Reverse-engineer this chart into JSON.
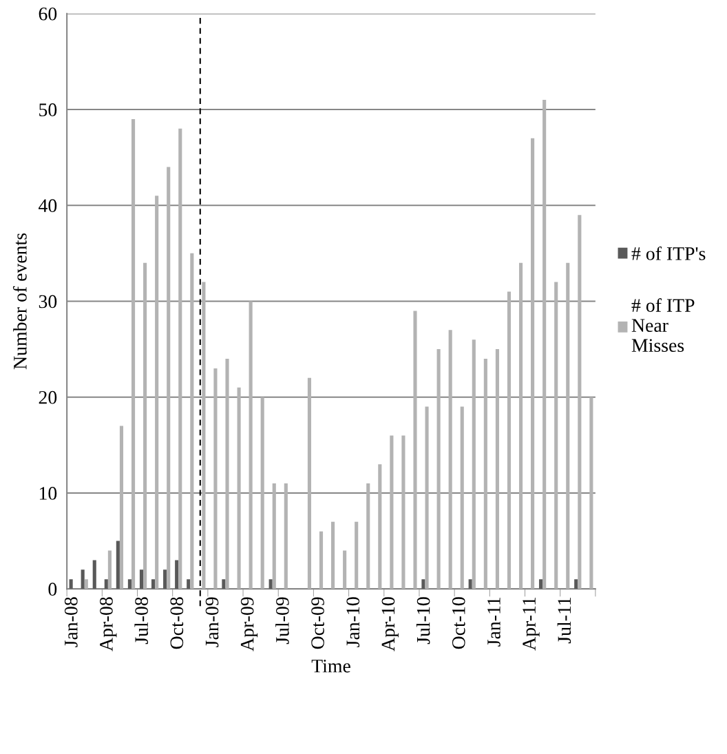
{
  "chart_data": {
    "type": "bar",
    "xlabel": "Time",
    "ylabel": "Number of events",
    "categories": [
      "Jan-08",
      null,
      null,
      "Apr-08",
      null,
      null,
      "Jul-08",
      null,
      null,
      "Oct-08",
      null,
      null,
      "Jan-09",
      null,
      null,
      "Apr-09",
      null,
      null,
      "Jul-09",
      null,
      null,
      "Oct-09",
      null,
      null,
      "Jan-10",
      null,
      null,
      "Apr-10",
      null,
      null,
      "Jul-10",
      null,
      null,
      "Oct-10",
      null,
      null,
      "Jan-11",
      null,
      null,
      "Apr-11",
      null,
      null,
      "Jul-11",
      null,
      null
    ],
    "series": [
      {
        "name": "# of ITP's",
        "color": "#595959",
        "values": [
          1,
          2,
          3,
          1,
          5,
          1,
          2,
          1,
          2,
          3,
          1,
          0,
          0,
          1,
          0,
          0,
          0,
          1,
          0,
          0,
          0,
          0,
          0,
          0,
          0,
          0,
          0,
          0,
          0,
          0,
          1,
          0,
          0,
          0,
          1,
          0,
          0,
          0,
          0,
          0,
          1,
          0,
          0,
          1,
          0
        ]
      },
      {
        "name": "# of ITP Near Misses",
        "color": "#b3b3b3",
        "values": [
          0,
          1,
          0,
          4,
          17,
          49,
          34,
          41,
          44,
          48,
          35,
          32,
          23,
          24,
          21,
          30,
          20,
          11,
          11,
          0,
          22,
          6,
          7,
          4,
          7,
          11,
          13,
          16,
          16,
          29,
          19,
          25,
          27,
          19,
          26,
          24,
          25,
          31,
          34,
          47,
          51,
          32,
          34,
          39,
          20
        ]
      }
    ],
    "ylim": [
      0,
      60
    ],
    "yticks": [
      0,
      10,
      20,
      30,
      40,
      50,
      60
    ],
    "grid": "y",
    "legend": "right"
  }
}
